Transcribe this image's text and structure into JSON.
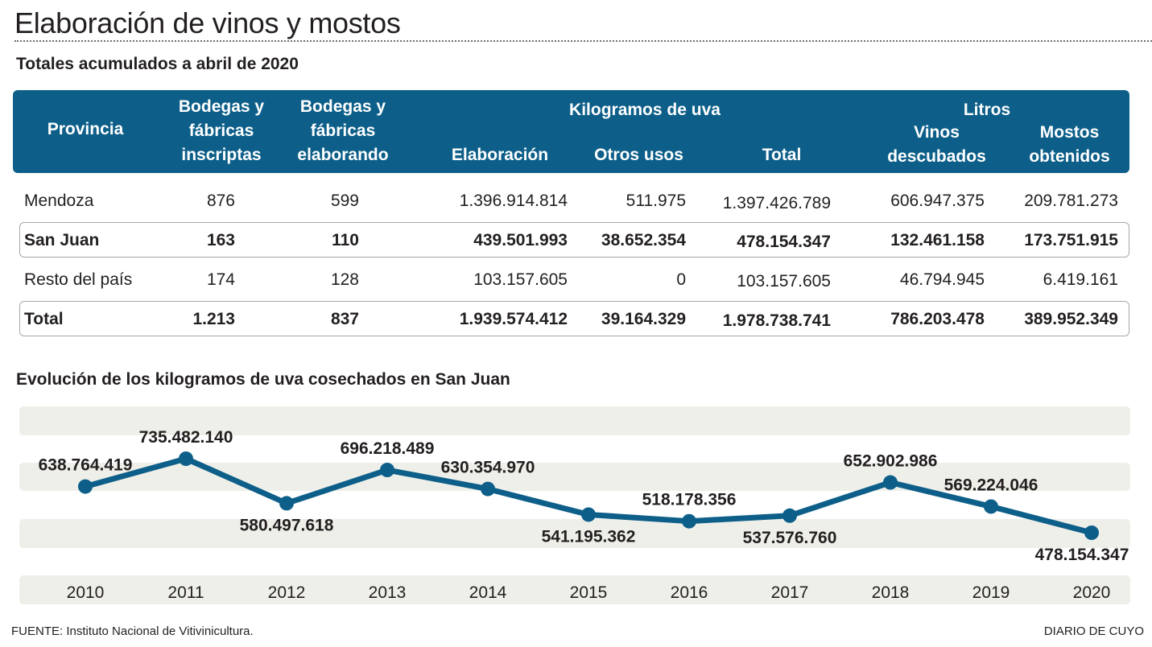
{
  "title": "Elaboración de vinos y mostos",
  "table_title": "Totales acumulados a abril de 2020",
  "headers": {
    "provincia": "Provincia",
    "bodegas_inscriptas": [
      "Bodegas y",
      "fábricas",
      "inscriptas"
    ],
    "bodegas_elaborando": [
      "Bodegas y",
      "fábricas",
      "elaborando"
    ],
    "kg_group": "Kilogramos de uva",
    "elaboracion": "Elaboración",
    "otros_usos": "Otros usos",
    "total": "Total",
    "litros_group": "Litros",
    "vinos": [
      "Vinos",
      "descubados"
    ],
    "mostos": [
      "Mostos",
      "obtenidos"
    ]
  },
  "rows": [
    {
      "provincia": "Mendoza",
      "inscriptas": "876",
      "elaborando": "599",
      "elaboracion": "1.396.914.814",
      "otros": "511.975",
      "total": "1.397.426.789",
      "vinos": "606.947.375",
      "mostos": "209.781.273"
    },
    {
      "provincia": "San  Juan",
      "inscriptas": "163",
      "elaborando": "110",
      "elaboracion": "439.501.993",
      "otros": "38.652.354",
      "total": "478.154.347",
      "vinos": "132.461.158",
      "mostos": "173.751.915"
    },
    {
      "provincia": "Resto del país",
      "inscriptas": "174",
      "elaborando": "128",
      "elaboracion": "103.157.605",
      "otros": "0",
      "total": "103.157.605",
      "vinos": "46.794.945",
      "mostos": "6.419.161"
    },
    {
      "provincia": "Total",
      "inscriptas": "1.213",
      "elaborando": "837",
      "elaboracion": "1.939.574.412",
      "otros": "39.164.329",
      "total": "1.978.738.741",
      "vinos": "786.203.478",
      "mostos": "389.952.349"
    }
  ],
  "chart_title": "Evolución de los kilogramos de uva cosechados en San Juan",
  "chart_data": {
    "type": "line",
    "title": "Evolución de los kilogramos de uva cosechados en San Juan",
    "xlabel": "",
    "ylabel": "",
    "categories": [
      "2010",
      "2011",
      "2012",
      "2013",
      "2014",
      "2015",
      "2016",
      "2017",
      "2018",
      "2019",
      "2020"
    ],
    "values": [
      638764419,
      735482140,
      580497618,
      696218489,
      630354970,
      541195362,
      518178356,
      537576760,
      652902986,
      569224046,
      478154347
    ],
    "labels": [
      "638.764.419",
      "735.482.140",
      "580.497.618",
      "696.218.489",
      "630.354.970",
      "541.195.362",
      "518.178.356",
      "537.576.760",
      "652.902.986",
      "569.224.046",
      "478.154.347"
    ],
    "ylim": [
      300000000,
      800000000
    ],
    "grid": true,
    "line_color": "#0d5f89",
    "band_color": "#efefe9"
  },
  "source": "FUENTE: Instituto Nacional de Vitivinicultura.",
  "brand": "DIARIO DE CUYO"
}
